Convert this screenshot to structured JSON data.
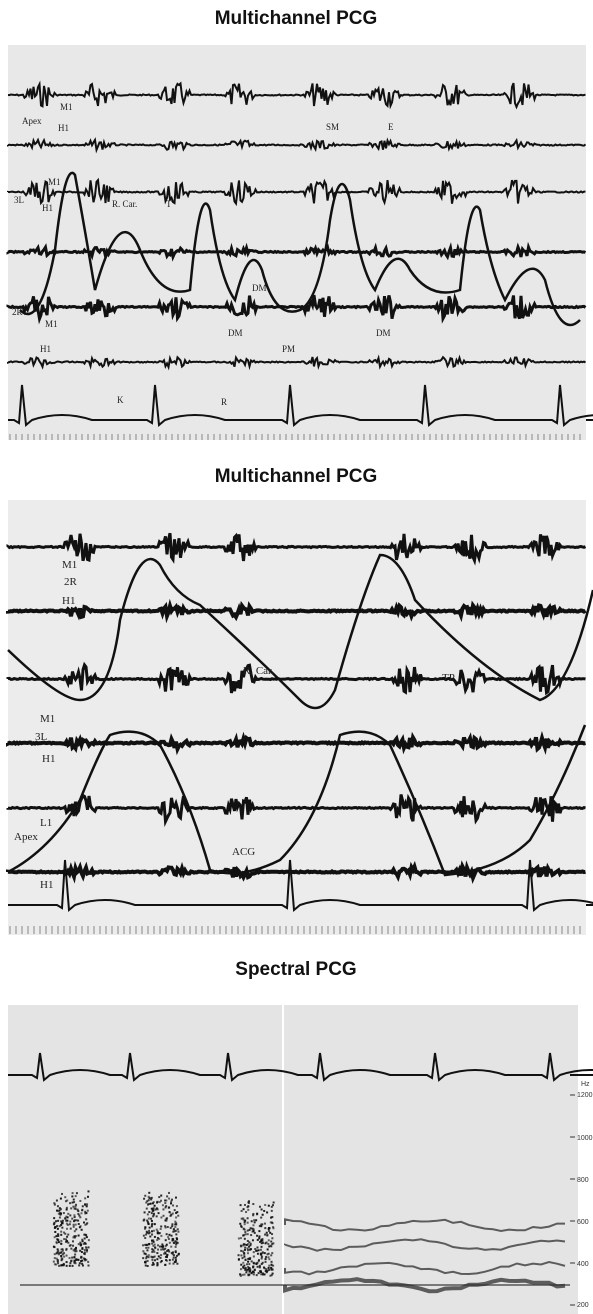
{
  "panels": [
    {
      "title": "Multichannel PCG",
      "labels": [
        "M1",
        "Apex",
        "H1",
        "SM",
        "E",
        "M1",
        "3L",
        "H1",
        "R. Car.",
        "T",
        "DM",
        "2R",
        "M1",
        "DM",
        "DM",
        "H1",
        "PM",
        "K",
        "R"
      ]
    },
    {
      "title": "Multichannel PCG",
      "labels": [
        "M1",
        "2R",
        "H1",
        "R. Car.",
        "M1",
        "TP",
        "3L",
        "H1",
        "L1",
        "Apex",
        "ACG",
        "H1"
      ]
    },
    {
      "title": "Spectral PCG",
      "labels": [
        "Hz",
        "1200",
        "1000",
        "800",
        "600",
        "400",
        "200"
      ]
    }
  ]
}
